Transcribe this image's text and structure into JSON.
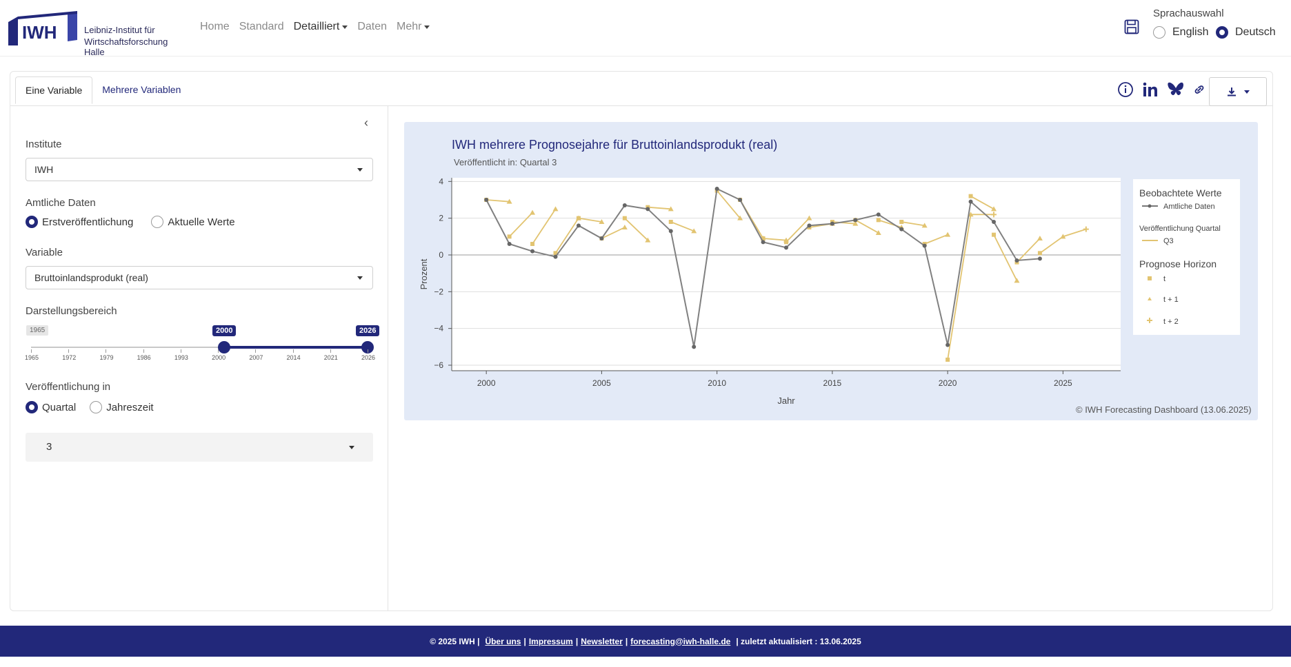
{
  "logo": {
    "brand": "IWH",
    "line1": "Leibniz-Institut für",
    "line2": "Wirtschaftsforschung Halle"
  },
  "nav": {
    "home": "Home",
    "standard": "Standard",
    "detailliert": "Detailliert",
    "daten": "Daten",
    "mehr": "Mehr"
  },
  "language": {
    "title": "Sprachauswahl",
    "english": "English",
    "deutsch": "Deutsch",
    "selected": "Deutsch"
  },
  "tabs": {
    "eine": "Eine Variable",
    "mehrere": "Mehrere Variablen"
  },
  "sidebar": {
    "institute_label": "Institute",
    "institute_value": "IWH",
    "amtliche_label": "Amtliche Daten",
    "amtliche_opt1": "Erstveröffentlichung",
    "amtliche_opt2": "Aktuelle Werte",
    "variable_label": "Variable",
    "variable_value": "Bruttoinlandsprodukt (real)",
    "range_label": "Darstellungsbereich",
    "range_min": "1965",
    "range_from": "2000",
    "range_to": "2026",
    "range_ticks": [
      "1965",
      "1972",
      "1979",
      "1986",
      "1993",
      "2000",
      "2007",
      "2014",
      "2021",
      "2026"
    ],
    "pub_label": "Veröffentlichung in",
    "pub_opt1": "Quartal",
    "pub_opt2": "Jahreszeit",
    "pub_value": "3"
  },
  "chart_data": {
    "type": "line",
    "title": "IWH mehrere Prognosejahre für Bruttoinlandsprodukt (real)",
    "subtitle": "Veröffentlicht in: Quartal 3",
    "xlabel": "Jahr",
    "ylabel": "Prozent",
    "xlim": [
      1998.5,
      2027.5
    ],
    "ylim": [
      -6.3,
      4.2
    ],
    "xticks": [
      2000,
      2005,
      2010,
      2015,
      2020,
      2025
    ],
    "yticks": [
      4,
      2,
      0,
      -2,
      -4,
      -6
    ],
    "observed": {
      "name": "Amtliche Daten",
      "x": [
        2000,
        2001,
        2002,
        2003,
        2004,
        2005,
        2006,
        2007,
        2008,
        2009,
        2010,
        2011,
        2012,
        2013,
        2014,
        2015,
        2016,
        2017,
        2018,
        2019,
        2020,
        2021,
        2022,
        2023,
        2024
      ],
      "y": [
        3.0,
        0.6,
        0.2,
        -0.1,
        1.6,
        0.9,
        2.7,
        2.5,
        1.3,
        -5.0,
        3.6,
        3.0,
        0.7,
        0.4,
        1.6,
        1.7,
        1.9,
        2.2,
        1.4,
        0.5,
        -4.9,
        2.9,
        1.8,
        -0.3,
        -0.2
      ]
    },
    "forecasts": [
      {
        "x": [
          2000,
          2001
        ],
        "y": [
          3.0,
          2.9
        ]
      },
      {
        "x": [
          2001,
          2002
        ],
        "y": [
          1.0,
          2.3
        ]
      },
      {
        "x": [
          2002,
          2003
        ],
        "y": [
          0.6,
          2.5
        ]
      },
      {
        "x": [
          2003,
          2004
        ],
        "y": [
          0.1,
          2.0
        ]
      },
      {
        "x": [
          2004,
          2005
        ],
        "y": [
          2.0,
          1.8
        ]
      },
      {
        "x": [
          2005,
          2006
        ],
        "y": [
          0.9,
          1.5
        ]
      },
      {
        "x": [
          2006,
          2007
        ],
        "y": [
          2.0,
          0.8
        ]
      },
      {
        "x": [
          2007,
          2008
        ],
        "y": [
          2.6,
          2.5
        ]
      },
      {
        "x": [
          2008,
          2009
        ],
        "y": [
          1.8,
          1.3
        ]
      },
      {
        "x": [
          2010,
          2011
        ],
        "y": [
          3.5,
          2.0
        ]
      },
      {
        "x": [
          2011,
          2012
        ],
        "y": [
          3.0,
          0.9
        ]
      },
      {
        "x": [
          2012,
          2013
        ],
        "y": [
          0.9,
          0.8
        ]
      },
      {
        "x": [
          2013,
          2014
        ],
        "y": [
          0.7,
          2.0
        ]
      },
      {
        "x": [
          2014,
          2015
        ],
        "y": [
          1.5,
          1.7
        ]
      },
      {
        "x": [
          2015,
          2016
        ],
        "y": [
          1.8,
          1.7
        ]
      },
      {
        "x": [
          2016,
          2017
        ],
        "y": [
          1.9,
          1.2
        ]
      },
      {
        "x": [
          2017,
          2018
        ],
        "y": [
          1.9,
          1.5
        ]
      },
      {
        "x": [
          2018,
          2019
        ],
        "y": [
          1.8,
          1.6
        ]
      },
      {
        "x": [
          2019,
          2020
        ],
        "y": [
          0.6,
          1.1
        ]
      },
      {
        "x": [
          2020,
          2021,
          2022
        ],
        "y": [
          -5.7,
          2.2,
          2.2
        ]
      },
      {
        "x": [
          2021,
          2022
        ],
        "y": [
          3.2,
          2.5
        ]
      },
      {
        "x": [
          2022,
          2023
        ],
        "y": [
          1.1,
          -1.4
        ]
      },
      {
        "x": [
          2023,
          2024
        ],
        "y": [
          -0.4,
          0.9
        ]
      },
      {
        "x": [
          2024,
          2025,
          2026
        ],
        "y": [
          0.1,
          1.0,
          1.4
        ]
      }
    ],
    "colors": {
      "observed": "#808080",
      "forecast": "#e2c471"
    },
    "legend": {
      "group1": "Beobachtete Werte",
      "observed_name": "Amtliche Daten",
      "group2": "Veröffentlichung Quartal",
      "q_name": "Q3",
      "group3": "Prognose Horizon",
      "h0": "t",
      "h1": "t + 1",
      "h2": "t + 2"
    },
    "copyright": "© IWH Forecasting Dashboard (13.06.2025)"
  },
  "footer": {
    "copy": "© 2025 IWH |",
    "about": "Über uns",
    "impressum": "Impressum",
    "newsletter": "Newsletter",
    "email": "forecasting@iwh-halle.de",
    "updated": "| zuletzt aktualisiert : 13.06.2025"
  }
}
